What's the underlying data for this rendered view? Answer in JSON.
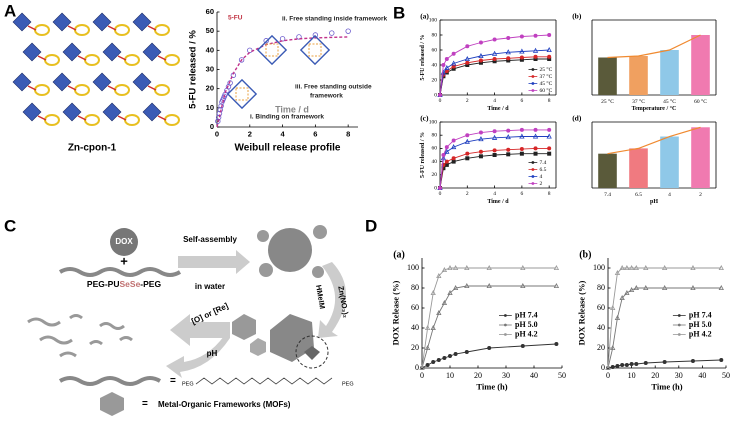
{
  "figure": {
    "panel_labels": [
      "A",
      "B",
      "C",
      "D"
    ],
    "structure_label": "Zn-cpon-1"
  },
  "diagram": {
    "dox": "DOX",
    "plus": "+",
    "polymer": [
      "PEG-PU",
      "SeSe",
      "-PEG"
    ],
    "assembly": [
      "Self-assembly",
      "in water"
    ],
    "reagent1": "HMeIM",
    "reagent2": "Zn(NO₃)₂",
    "stimulus": "[O] or [Re]",
    "ph": "pH",
    "eq1": "=",
    "peg_left": "PEG",
    "peg_right": "PEG",
    "eq2": "=",
    "mof": "Metal-Organic Frameworks (MOFs)"
  },
  "chart_data": [
    {
      "type": "scatter",
      "title": "Weibull release profile",
      "xlabel": "Time / d",
      "ylabel": "5-FU released / %",
      "xlim": [
        0,
        8.6
      ],
      "ylim": [
        0,
        60
      ],
      "xticks": [
        0,
        2,
        4,
        6,
        8
      ],
      "yticks": [
        0,
        10,
        20,
        30,
        40,
        50,
        60
      ],
      "annotations": [
        "5-FU",
        "ii. Free standing inside framework",
        "iii. Free standing outside",
        "framework",
        "i. Binding on framework"
      ],
      "series": [
        {
          "mode": "markers",
          "marker": "open-circle",
          "color": "#6a5acd",
          "x": [
            0.05,
            0.1,
            0.15,
            0.2,
            0.25,
            0.3,
            0.35,
            0.4,
            0.45,
            0.5,
            0.6,
            0.7,
            0.8,
            1,
            1.5,
            2,
            3,
            4,
            5,
            6,
            7,
            8
          ],
          "values": [
            3,
            5,
            7,
            9,
            11,
            13,
            14,
            15,
            16,
            17,
            19,
            21,
            23,
            27,
            35,
            40,
            45,
            46,
            47,
            48,
            49,
            50
          ]
        },
        {
          "mode": "line",
          "dash": true,
          "color": "#c0308a",
          "x": [
            0,
            0.5,
            1,
            1.5,
            2,
            3,
            4,
            5,
            6,
            8
          ],
          "values": [
            0,
            18,
            28,
            35,
            39,
            43,
            45,
            46,
            46.5,
            47
          ]
        }
      ]
    },
    {
      "type": "line",
      "label": "(a)",
      "xlabel": "Time / d",
      "ylabel": "5-FU released / %",
      "xlim": [
        0,
        8.5
      ],
      "ylim": [
        0,
        100
      ],
      "xticks": [
        0,
        2,
        4,
        6,
        8
      ],
      "yticks": [
        0,
        20,
        40,
        60,
        80,
        100
      ],
      "legend": "lower right",
      "frame": true,
      "x": [
        0,
        0.25,
        0.5,
        1,
        2,
        3,
        4,
        5,
        6,
        7,
        8
      ],
      "series": [
        {
          "name": "25 °C",
          "color": "#222222",
          "marker": "square",
          "values": [
            0,
            25,
            30,
            35,
            40,
            43,
            45,
            46,
            47,
            48,
            48
          ]
        },
        {
          "name": "37 °C",
          "color": "#d62728",
          "marker": "circle",
          "values": [
            0,
            27,
            32,
            38,
            43,
            46,
            48,
            49,
            50,
            51,
            51
          ]
        },
        {
          "name": "45 °C",
          "color": "#1f3fbf",
          "marker": "triangle",
          "values": [
            0,
            30,
            36,
            42,
            48,
            52,
            55,
            57,
            58,
            59,
            60
          ]
        },
        {
          "name": "60 °C",
          "color": "#c040c0",
          "marker": "circle",
          "values": [
            0,
            40,
            48,
            55,
            65,
            70,
            74,
            76,
            78,
            79,
            80
          ]
        }
      ]
    },
    {
      "type": "bar",
      "label": "(b)",
      "xlabel": "Temperature / °C",
      "ylim": [
        0,
        100
      ],
      "frame": true,
      "line_color": "#f08a30",
      "categories": [
        "25 °C",
        "37 °C",
        "45 °C",
        "60 °C"
      ],
      "values": [
        50,
        52,
        60,
        80
      ],
      "colors": [
        "#5a5a3a",
        "#f0a060",
        "#8fc8e8",
        "#f07ab0"
      ]
    },
    {
      "type": "line",
      "label": "(c)",
      "xlabel": "Time / d",
      "ylabel": "5-FU released / %",
      "xlim": [
        0,
        8.5
      ],
      "ylim": [
        0,
        100
      ],
      "xticks": [
        0,
        2,
        4,
        6,
        8
      ],
      "yticks": [
        0,
        20,
        40,
        60,
        80,
        100
      ],
      "legend": "lower right",
      "frame": true,
      "x": [
        0,
        0.25,
        0.5,
        1,
        2,
        3,
        4,
        5,
        6,
        7,
        8
      ],
      "series": [
        {
          "name": "7.4",
          "color": "#222222",
          "marker": "square",
          "values": [
            0,
            30,
            35,
            40,
            45,
            48,
            50,
            51,
            52,
            52,
            52
          ]
        },
        {
          "name": "6.5",
          "color": "#d62728",
          "marker": "circle",
          "values": [
            0,
            35,
            40,
            45,
            52,
            55,
            57,
            58,
            59,
            60,
            60
          ]
        },
        {
          "name": "4",
          "color": "#1f3fbf",
          "marker": "triangle",
          "values": [
            0,
            45,
            55,
            62,
            70,
            74,
            76,
            77,
            78,
            78,
            78
          ]
        },
        {
          "name": "2",
          "color": "#c040c0",
          "marker": "circle",
          "values": [
            0,
            50,
            62,
            72,
            80,
            84,
            86,
            87,
            88,
            88,
            88
          ]
        }
      ]
    },
    {
      "type": "bar",
      "label": "(d)",
      "xlabel": "pH",
      "ylim": [
        0,
        100
      ],
      "frame": true,
      "line_color": "#f08a30",
      "categories": [
        "7.4",
        "6.5",
        "4",
        "2"
      ],
      "values": [
        52,
        60,
        78,
        92
      ],
      "colors": [
        "#5a5a3a",
        "#f07a80",
        "#8fc8e8",
        "#f07ab0"
      ]
    },
    {
      "type": "line",
      "label": "(a)",
      "xlabel": "Time (h)",
      "ylabel": "DOX Release (%)",
      "xlim": [
        0,
        50
      ],
      "ylim": [
        0,
        110
      ],
      "xticks": [
        0,
        10,
        20,
        30,
        40,
        50
      ],
      "yticks": [
        0,
        20,
        40,
        60,
        80,
        100
      ],
      "legend": "center right",
      "x": [
        0,
        2,
        4,
        6,
        8,
        10,
        12,
        16,
        24,
        36,
        48
      ],
      "series": [
        {
          "name": "pH 7.4",
          "color": "#333333",
          "marker": "circle",
          "values": [
            0,
            3,
            6,
            8,
            10,
            12,
            14,
            16,
            20,
            22,
            24
          ]
        },
        {
          "name": "pH 5.0",
          "color": "#777777",
          "marker": "triangle",
          "values": [
            0,
            20,
            40,
            55,
            65,
            75,
            80,
            82,
            82,
            82,
            82
          ]
        },
        {
          "name": "pH 4.2",
          "color": "#999999",
          "marker": "triangle",
          "values": [
            0,
            40,
            75,
            92,
            98,
            100,
            100,
            100,
            100,
            100,
            100
          ]
        }
      ]
    },
    {
      "type": "line",
      "label": "(b)",
      "xlabel": "Time (h)",
      "ylabel": "DOX Release (%)",
      "xlim": [
        0,
        50
      ],
      "ylim": [
        0,
        110
      ],
      "xticks": [
        0,
        10,
        20,
        30,
        40,
        50
      ],
      "yticks": [
        0,
        20,
        40,
        60,
        80,
        100
      ],
      "legend": "center right",
      "x": [
        0,
        2,
        4,
        6,
        8,
        10,
        12,
        16,
        24,
        36,
        48
      ],
      "series": [
        {
          "name": "pH 7.4",
          "color": "#333333",
          "marker": "circle",
          "values": [
            0,
            1,
            2,
            3,
            3,
            4,
            4,
            5,
            6,
            7,
            8
          ]
        },
        {
          "name": "pH 5.0",
          "color": "#777777",
          "marker": "triangle",
          "values": [
            0,
            20,
            50,
            70,
            75,
            78,
            80,
            80,
            80,
            80,
            80
          ]
        },
        {
          "name": "pH 4.2",
          "color": "#999999",
          "marker": "triangle",
          "values": [
            0,
            60,
            95,
            100,
            100,
            100,
            100,
            100,
            100,
            100,
            100
          ]
        }
      ]
    }
  ]
}
